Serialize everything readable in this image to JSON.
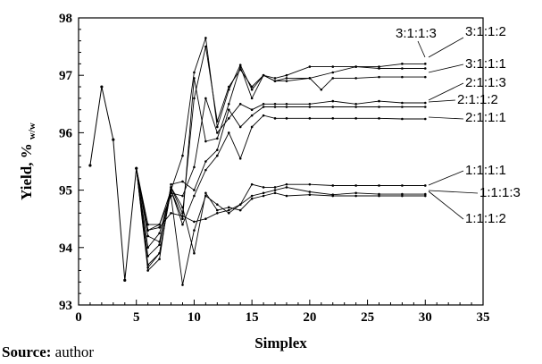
{
  "chart_data": {
    "type": "line",
    "title": "",
    "xlabel": "Simplex",
    "ylabel": "Yield, % w/w",
    "xlim": [
      0,
      35
    ],
    "ylim": [
      93,
      98
    ],
    "xticks": [
      "0",
      "5",
      "10",
      "15",
      "20",
      "25",
      "30",
      "35"
    ],
    "yticks": [
      "93",
      "94",
      "95",
      "96",
      "97",
      "98"
    ],
    "grid": false,
    "legend": "none",
    "colors": {
      "line": "#000000"
    },
    "shared_start": {
      "x": [
        1,
        2,
        3,
        4,
        5
      ],
      "y": [
        95.43,
        96.8,
        95.88,
        93.43,
        95.38
      ]
    },
    "series": [
      {
        "name": "3:1:1:3",
        "label_pos": "top",
        "x": [
          5,
          6,
          7,
          8,
          9,
          10,
          11,
          12,
          13,
          14,
          15,
          16,
          17,
          18,
          20,
          22,
          24,
          26,
          28,
          30
        ],
        "y": [
          95.38,
          93.85,
          94.05,
          95.05,
          94.6,
          96.6,
          97.5,
          96.2,
          96.8,
          97.1,
          96.8,
          97.0,
          96.9,
          96.95,
          96.95,
          97.05,
          97.15,
          97.15,
          97.2,
          97.2
        ]
      },
      {
        "name": "3:1:1:2",
        "label_pos": "top",
        "x": [
          5,
          6,
          7,
          8,
          9,
          10,
          11,
          12,
          13,
          14,
          15,
          16,
          17,
          18,
          20,
          22,
          24,
          26,
          28,
          30
        ],
        "y": [
          95.38,
          93.7,
          93.9,
          95.0,
          95.6,
          97.05,
          97.65,
          96.1,
          96.75,
          97.18,
          96.75,
          97.0,
          96.95,
          97.0,
          97.15,
          97.15,
          97.15,
          97.12,
          97.12,
          97.12
        ]
      },
      {
        "name": "3:1:1:1",
        "label_pos": "right",
        "x": [
          5,
          6,
          7,
          8,
          9,
          10,
          11,
          12,
          13,
          14,
          15,
          16,
          17,
          18,
          20,
          21,
          22,
          24,
          26,
          28,
          30
        ],
        "y": [
          95.38,
          94.3,
          94.4,
          95.0,
          94.5,
          96.95,
          95.85,
          95.9,
          96.5,
          97.15,
          96.6,
          97.0,
          96.9,
          96.9,
          96.95,
          96.75,
          96.95,
          96.95,
          96.97,
          96.97,
          96.97
        ]
      },
      {
        "name": "2:1:1:3",
        "label_pos": "right",
        "x": [
          5,
          6,
          7,
          8,
          9,
          10,
          11,
          12,
          13,
          14,
          15,
          16,
          17,
          18,
          20,
          22,
          24,
          26,
          28,
          30
        ],
        "y": [
          95.38,
          94.0,
          94.25,
          94.95,
          94.9,
          95.4,
          96.6,
          96.0,
          96.25,
          96.5,
          96.4,
          96.5,
          96.5,
          96.5,
          96.5,
          96.55,
          96.5,
          96.55,
          96.52,
          96.52
        ]
      },
      {
        "name": "2:1:1:2",
        "label_pos": "right",
        "x": [
          5,
          6,
          7,
          8,
          9,
          10,
          11,
          12,
          13,
          14,
          15,
          16,
          17,
          18,
          20,
          22,
          24,
          26,
          28,
          30
        ],
        "y": [
          95.38,
          93.6,
          93.8,
          95.1,
          95.15,
          95.0,
          95.5,
          95.7,
          96.4,
          96.1,
          96.3,
          96.45,
          96.45,
          96.45,
          96.45,
          96.45,
          96.45,
          96.45,
          96.45,
          96.45
        ]
      },
      {
        "name": "2:1:1:1",
        "label_pos": "right",
        "x": [
          5,
          6,
          7,
          8,
          9,
          10,
          11,
          12,
          13,
          14,
          15,
          16,
          17,
          18,
          20,
          22,
          24,
          26,
          28,
          30
        ],
        "y": [
          95.38,
          93.65,
          93.9,
          95.0,
          94.4,
          94.9,
          95.35,
          95.6,
          96.0,
          95.55,
          96.1,
          96.3,
          96.25,
          96.25,
          96.25,
          96.25,
          96.25,
          96.25,
          96.24,
          96.24
        ]
      },
      {
        "name": "1:1:1:1",
        "label_pos": "right",
        "x": [
          5,
          6,
          7,
          8,
          9,
          10,
          11,
          12,
          13,
          14,
          15,
          16,
          17,
          18,
          20,
          22,
          24,
          26,
          28,
          30
        ],
        "y": [
          95.38,
          94.4,
          94.4,
          94.9,
          93.35,
          94.3,
          94.9,
          94.75,
          94.6,
          94.75,
          95.1,
          95.05,
          95.05,
          95.1,
          95.1,
          95.08,
          95.08,
          95.08,
          95.08,
          95.08
        ]
      },
      {
        "name": "1:1:1:3",
        "label_pos": "right",
        "x": [
          5,
          6,
          7,
          8,
          9,
          10,
          11,
          12,
          13,
          14,
          15,
          16,
          17,
          18,
          20,
          22,
          24,
          26,
          28,
          30
        ],
        "y": [
          95.38,
          94.3,
          94.35,
          94.6,
          94.55,
          94.45,
          94.5,
          94.6,
          94.65,
          94.75,
          94.9,
          94.95,
          95.0,
          95.05,
          94.97,
          94.92,
          94.95,
          94.93,
          94.93,
          94.93
        ]
      },
      {
        "name": "1:1:1:2",
        "label_pos": "right",
        "x": [
          5,
          6,
          7,
          8,
          9,
          10,
          11,
          12,
          13,
          14,
          15,
          16,
          17,
          18,
          20,
          22,
          24,
          26,
          28,
          30
        ],
        "y": [
          95.38,
          94.2,
          94.1,
          95.05,
          94.7,
          93.9,
          94.95,
          94.65,
          94.7,
          94.65,
          94.85,
          94.9,
          94.95,
          94.9,
          94.92,
          94.9,
          94.9,
          94.9,
          94.9,
          94.9
        ]
      }
    ]
  },
  "source_note": {
    "label": "Source:",
    "text": "author"
  }
}
